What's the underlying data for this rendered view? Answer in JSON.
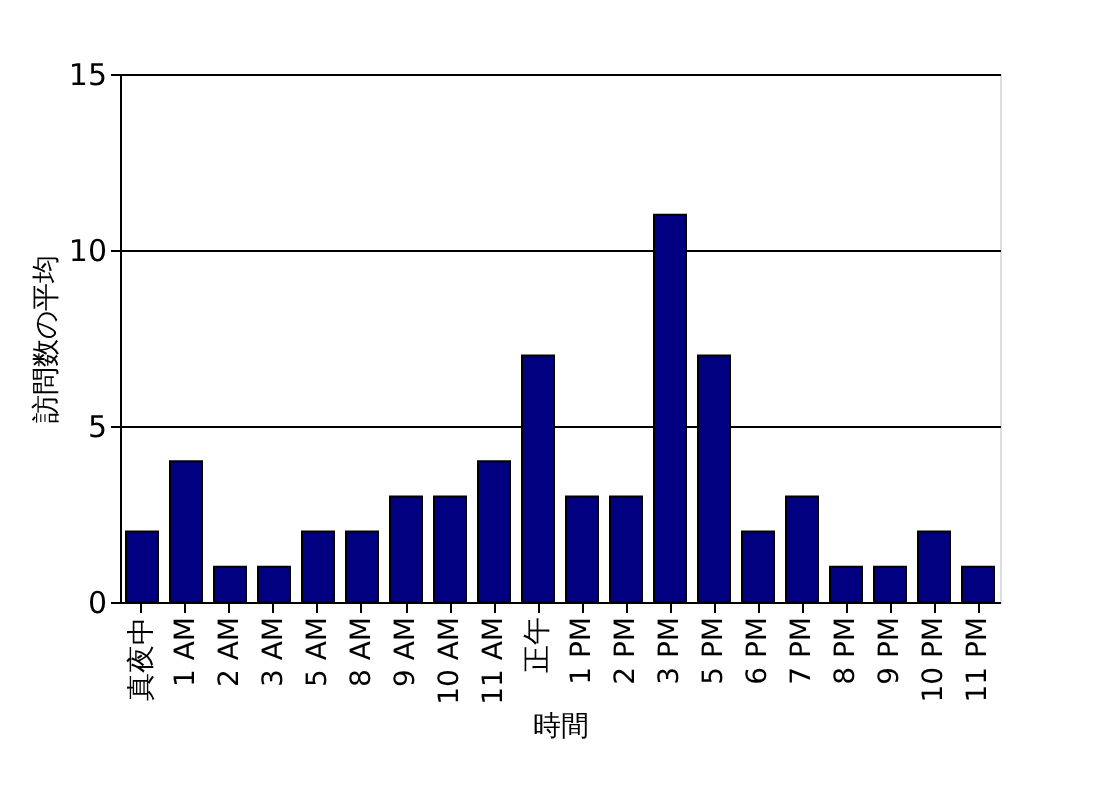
{
  "chart_data": {
    "type": "bar",
    "xlabel": "時間",
    "ylabel": "訪問数の平均",
    "categories": [
      "真夜中",
      "1 AM",
      "2 AM",
      "3 AM",
      "5 AM",
      "8 AM",
      "9 AM",
      "10 AM",
      "11 AM",
      "正午",
      "1 PM",
      "2 PM",
      "3 PM",
      "5 PM",
      "6 PM",
      "7 PM",
      "8 PM",
      "9 PM",
      "10 PM",
      "11 PM"
    ],
    "values": [
      2,
      4,
      1,
      1,
      2,
      2,
      3,
      3,
      4,
      7,
      3,
      3,
      11,
      7,
      2,
      3,
      1,
      1,
      2,
      1
    ],
    "color": "#000080",
    "ylim": [
      0,
      15
    ],
    "yticks": [
      0,
      5,
      10,
      15
    ],
    "grid": "y"
  }
}
